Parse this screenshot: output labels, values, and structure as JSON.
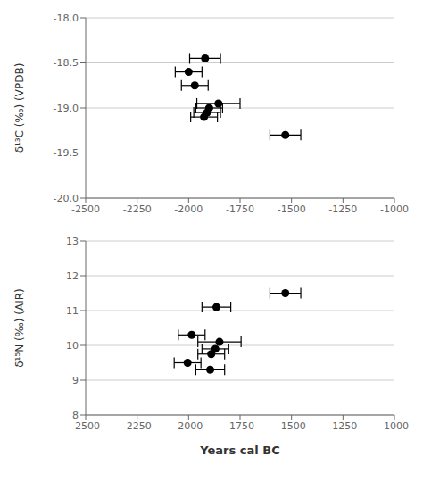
{
  "chart_data": [
    {
      "type": "scatter",
      "x": [
        -1920,
        -2000,
        -1970,
        -1855,
        -1900,
        -1910,
        -1925,
        -1530
      ],
      "values": [
        -18.45,
        -18.6,
        -18.75,
        -18.95,
        -19.0,
        -19.05,
        -19.1,
        -19.3
      ],
      "xerr": [
        75,
        65,
        65,
        105,
        65,
        65,
        65,
        75
      ],
      "ylabel": "δ¹³C (‰) (VPDB)",
      "xlim": [
        -2500,
        -1000
      ],
      "xticks": [
        -2500,
        -2250,
        -2000,
        -1750,
        -1500,
        -1250,
        -1000
      ],
      "ylim": [
        -20.0,
        -18.0
      ],
      "yticks": [
        {
          "value": -20,
          "label": "-20.0"
        },
        -19.5,
        {
          "value": -19,
          "label": "-19.0"
        },
        -18.5,
        {
          "value": -18,
          "label": "-18.0"
        }
      ],
      "grid": "y",
      "color": "black",
      "marker": "circle"
    },
    {
      "type": "scatter",
      "x": [
        -1530,
        -1865,
        -1985,
        -1850,
        -1870,
        -1890,
        -2005,
        -1895
      ],
      "values": [
        11.5,
        11.1,
        10.3,
        10.1,
        9.9,
        9.75,
        9.5,
        9.3
      ],
      "xerr": [
        75,
        70,
        65,
        105,
        65,
        65,
        65,
        70
      ],
      "ylabel": "δ¹⁵N (‰) (AIR)",
      "xlabel": "Years cal BC",
      "xlim": [
        -2500,
        -1000
      ],
      "xticks": [
        -2500,
        -2250,
        -2000,
        -1750,
        -1500,
        -1250,
        -1000
      ],
      "ylim": [
        8,
        13
      ],
      "yticks": [
        8,
        9,
        10,
        11,
        12,
        13
      ],
      "grid": "y",
      "color": "black",
      "marker": "circle"
    }
  ]
}
